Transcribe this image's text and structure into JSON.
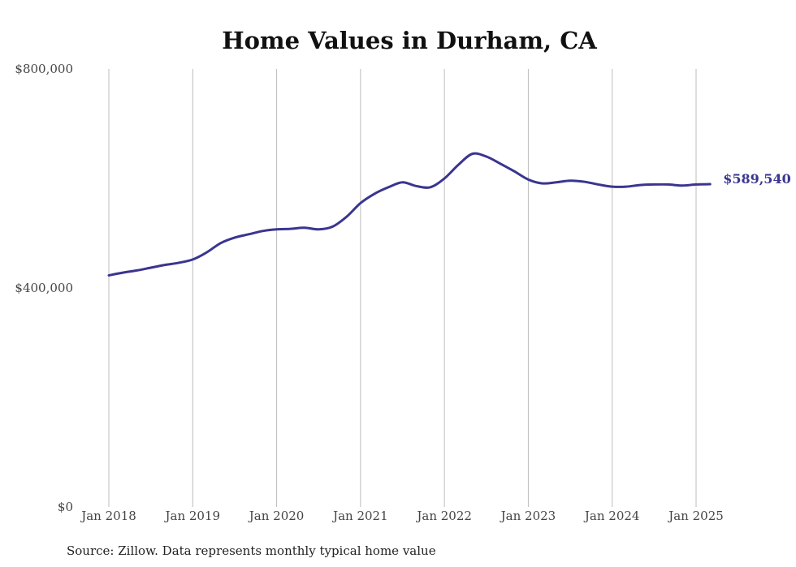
{
  "chart_data": {
    "type": "line",
    "title": "Home Values in Durham, CA",
    "xlabel": "",
    "ylabel": "",
    "x_ticks": [
      "Jan 2018",
      "Jan 2019",
      "Jan 2020",
      "Jan 2021",
      "Jan 2022",
      "Jan 2023",
      "Jan 2024",
      "Jan 2025"
    ],
    "y_ticks": [
      "$0",
      "$400,000",
      "$800,000"
    ],
    "ylim": [
      0,
      800000
    ],
    "xlim": [
      "2018-01",
      "2025-03"
    ],
    "grid": "vertical",
    "series": [
      {
        "color": "#3a3590",
        "end_label": "$589,540",
        "points": [
          [
            "2018-01",
            423000
          ],
          [
            "2018-03",
            428000
          ],
          [
            "2018-05",
            432000
          ],
          [
            "2018-07",
            437000
          ],
          [
            "2018-09",
            442000
          ],
          [
            "2018-11",
            446000
          ],
          [
            "2019-01",
            452000
          ],
          [
            "2019-03",
            465000
          ],
          [
            "2019-05",
            482000
          ],
          [
            "2019-07",
            492000
          ],
          [
            "2019-09",
            498000
          ],
          [
            "2019-11",
            504000
          ],
          [
            "2020-01",
            507000
          ],
          [
            "2020-03",
            508000
          ],
          [
            "2020-05",
            510000
          ],
          [
            "2020-07",
            507000
          ],
          [
            "2020-09",
            512000
          ],
          [
            "2020-11",
            530000
          ],
          [
            "2021-01",
            555000
          ],
          [
            "2021-03",
            572000
          ],
          [
            "2021-05",
            584000
          ],
          [
            "2021-07",
            593000
          ],
          [
            "2021-09",
            586000
          ],
          [
            "2021-11",
            584000
          ],
          [
            "2022-01",
            600000
          ],
          [
            "2022-03",
            625000
          ],
          [
            "2022-05",
            645000
          ],
          [
            "2022-07",
            640000
          ],
          [
            "2022-09",
            627000
          ],
          [
            "2022-11",
            613000
          ],
          [
            "2023-01",
            598000
          ],
          [
            "2023-03",
            591000
          ],
          [
            "2023-05",
            593000
          ],
          [
            "2023-07",
            596000
          ],
          [
            "2023-09",
            594000
          ],
          [
            "2023-11",
            589000
          ],
          [
            "2024-01",
            585000
          ],
          [
            "2024-03",
            585000
          ],
          [
            "2024-05",
            588000
          ],
          [
            "2024-07",
            589000
          ],
          [
            "2024-09",
            589000
          ],
          [
            "2024-11",
            587000
          ],
          [
            "2025-01",
            589000
          ],
          [
            "2025-03",
            589540
          ]
        ]
      }
    ],
    "source": "Source: Zillow. Data represents monthly typical home value"
  }
}
